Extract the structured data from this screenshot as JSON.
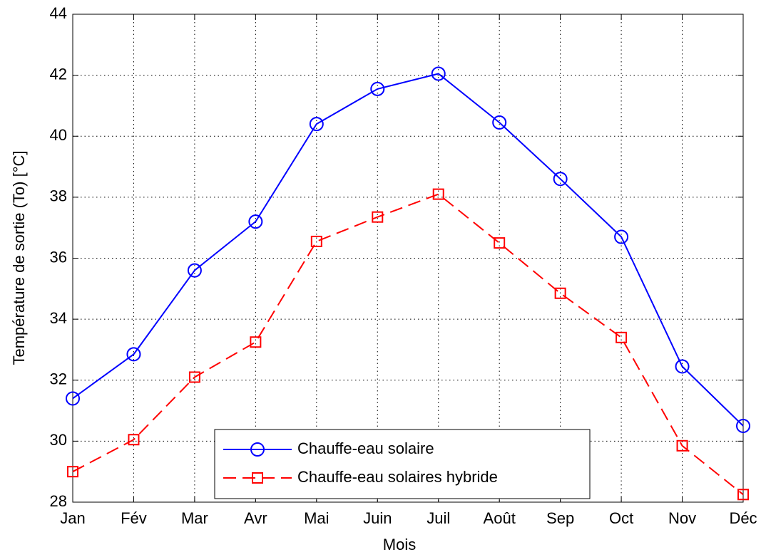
{
  "chart_data": {
    "type": "line",
    "xlabel": "Mois",
    "ylabel": "Température de sortie (To) [°C]",
    "categories": [
      "Jan",
      "Fév",
      "Mar",
      "Avr",
      "Mai",
      "Juin",
      "Juil",
      "Août",
      "Sep",
      "Oct",
      "Nov",
      "Déc"
    ],
    "series": [
      {
        "name": "Chauffe-eau solaire",
        "color": "#0000ff",
        "linestyle": "solid",
        "marker": "circle",
        "values": [
          31.4,
          32.85,
          35.6,
          37.2,
          40.4,
          41.55,
          42.05,
          40.45,
          38.6,
          36.7,
          32.45,
          30.5
        ]
      },
      {
        "name": "Chauffe-eau solaires hybride",
        "color": "#ff0000",
        "linestyle": "dashed",
        "marker": "square",
        "values": [
          29.0,
          30.05,
          32.1,
          33.25,
          36.55,
          37.35,
          38.1,
          36.5,
          34.85,
          33.4,
          29.85,
          28.25
        ]
      }
    ],
    "ylim": [
      28,
      44
    ],
    "yticks": [
      28,
      30,
      32,
      34,
      36,
      38,
      40,
      42,
      44
    ],
    "grid": true,
    "legend": "lower center"
  }
}
